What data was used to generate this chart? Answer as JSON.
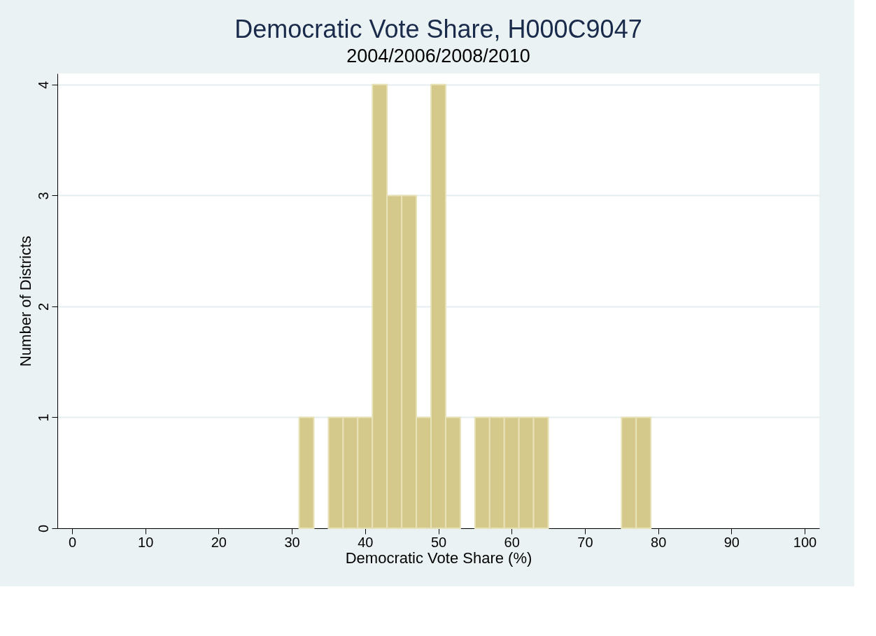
{
  "chart_data": {
    "type": "histogram",
    "title": "Democratic Vote Share, H000C9047",
    "subtitle": "2004/2006/2008/2010",
    "xlabel": "Democratic Vote Share (%)",
    "ylabel": "Number of Districts",
    "bins": [
      31,
      33,
      35,
      37,
      39,
      41,
      43,
      45,
      47,
      49,
      51,
      53,
      55,
      57,
      59,
      61,
      63,
      65,
      75,
      77,
      79
    ],
    "values": [
      1,
      0,
      1,
      1,
      1,
      4,
      3,
      3,
      1,
      4,
      1,
      0,
      1,
      1,
      1,
      1,
      1,
      0,
      1,
      1
    ],
    "color": "#d4c98a",
    "xlim": [
      -2,
      102
    ],
    "xticks": [
      0,
      10,
      20,
      30,
      40,
      50,
      60,
      70,
      80,
      90,
      100
    ],
    "ylim": [
      0,
      4.1
    ],
    "yticks": [
      0,
      1,
      2,
      3,
      4
    ],
    "grid": "y"
  }
}
